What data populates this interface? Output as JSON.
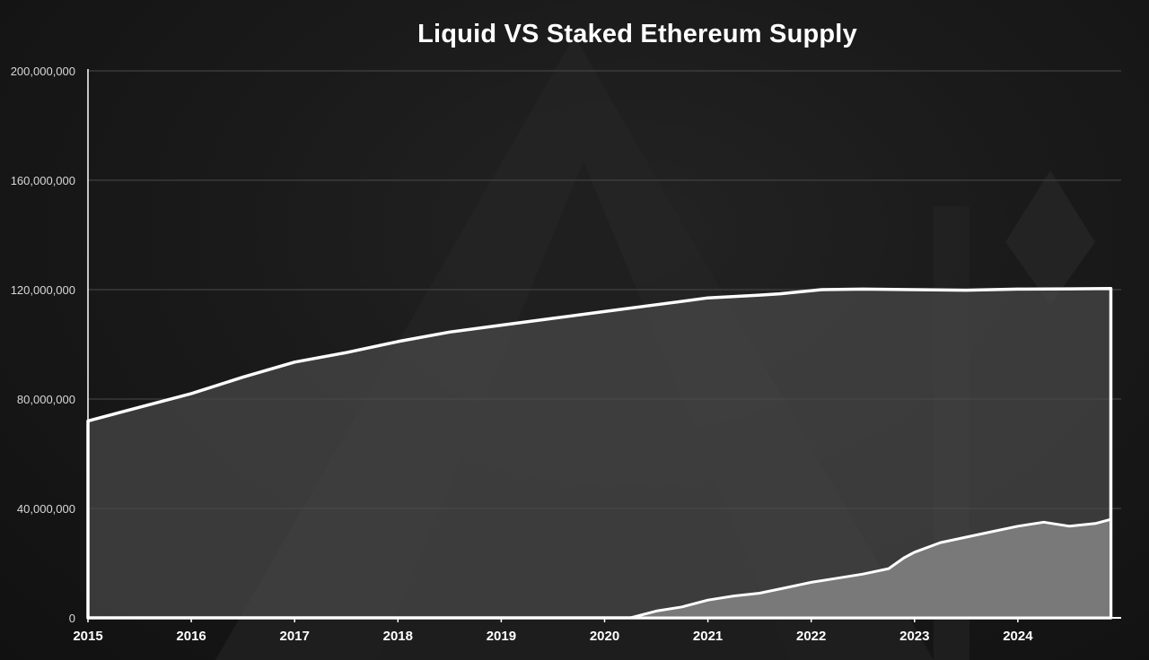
{
  "chart_data": {
    "type": "area",
    "title": "Liquid VS Staked Ethereum Supply",
    "xlabel": "",
    "ylabel": "",
    "x_range": [
      2015,
      2025
    ],
    "ylim": [
      0,
      200000000
    ],
    "y_ticks": [
      0,
      40000000,
      80000000,
      120000000,
      160000000,
      200000000
    ],
    "y_tick_labels": [
      "0",
      "40,000,000",
      "80,000,000",
      "120,000,000",
      "160,000,000",
      "200,000,000"
    ],
    "x_ticks": [
      2015,
      2016,
      2017,
      2018,
      2019,
      2020,
      2021,
      2022,
      2023,
      2024
    ],
    "x_tick_labels": [
      "2015",
      "2016",
      "2017",
      "2018",
      "2019",
      "2020",
      "2021",
      "2022",
      "2023",
      "2024"
    ],
    "grid": true,
    "legend": "none",
    "colors": {
      "liquid_fill": "#4a4a4a",
      "staked_fill": "#7c7c7c",
      "outline": "#ffffff",
      "grid": "#4a4a4a",
      "axis": "#ffffff"
    },
    "series": [
      {
        "x": [
          2015.0,
          2015.6,
          2016.0,
          2016.5,
          2017.0,
          2017.5,
          2018.0,
          2018.5,
          2019.0,
          2019.5,
          2020.0,
          2020.5,
          2021.0,
          2021.5,
          2021.7,
          2022.1,
          2022.5,
          2023.0,
          2023.5,
          2024.0,
          2024.5,
          2024.9
        ],
        "y": [
          72000000,
          78000000,
          82000000,
          88000000,
          93500000,
          97000000,
          101000000,
          104500000,
          107000000,
          109500000,
          112000000,
          114500000,
          117000000,
          118000000,
          118500000,
          120000000,
          120200000,
          120000000,
          119800000,
          120200000,
          120300000,
          120400000
        ]
      },
      {
        "x": [
          2015.0,
          2020.25,
          2020.5,
          2020.75,
          2021.0,
          2021.25,
          2021.5,
          2021.75,
          2022.0,
          2022.25,
          2022.5,
          2022.75,
          2022.9,
          2023.0,
          2023.25,
          2023.5,
          2023.75,
          2024.0,
          2024.25,
          2024.5,
          2024.75,
          2024.9
        ],
        "y": [
          0,
          0,
          2500000,
          4000000,
          6500000,
          8000000,
          9000000,
          11000000,
          13000000,
          14500000,
          16000000,
          18000000,
          22000000,
          24000000,
          27500000,
          29500000,
          31500000,
          33500000,
          35000000,
          33500000,
          34500000,
          36000000
        ]
      }
    ]
  }
}
